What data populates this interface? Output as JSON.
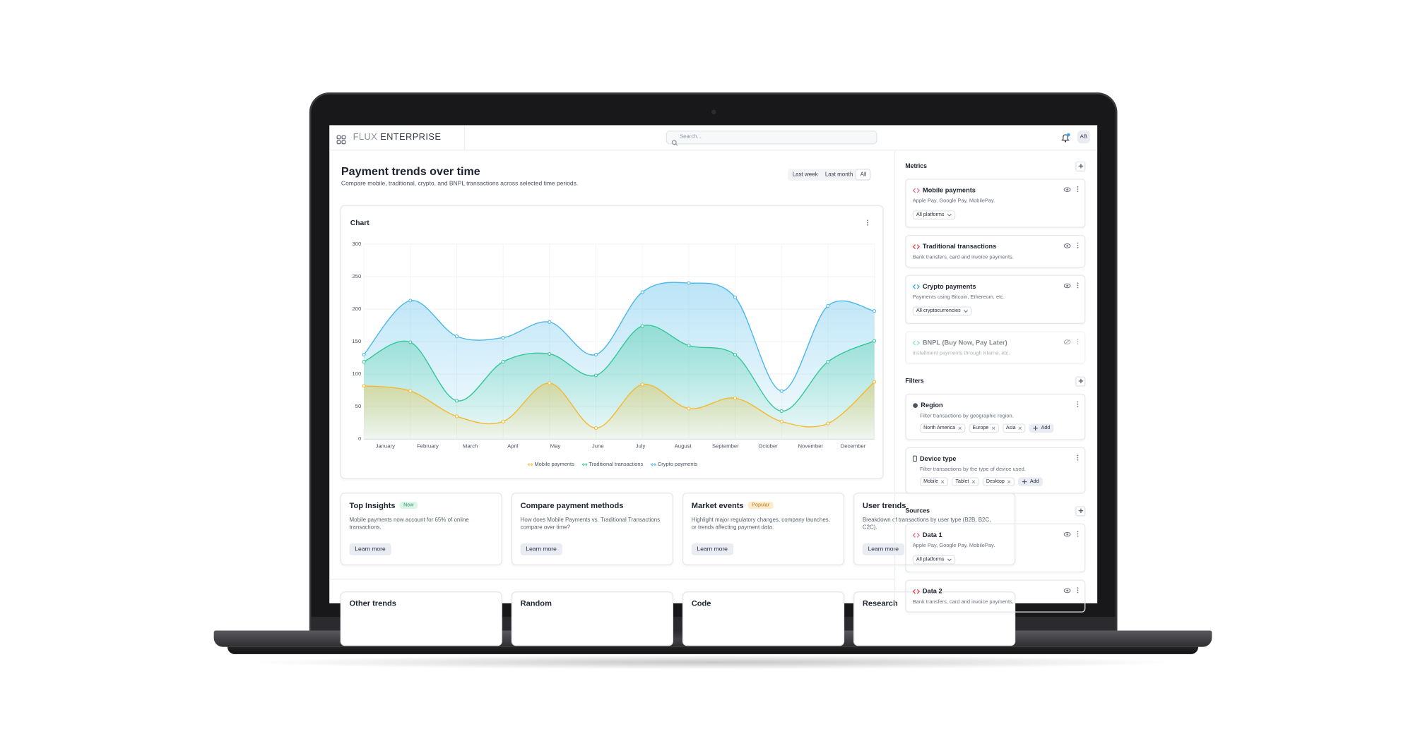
{
  "header": {
    "brand_light": "FLUX",
    "brand_bold": "ENTERPRISE",
    "search_placeholder": "Search...",
    "avatar": "AB"
  },
  "page": {
    "title": "Payment trends over time",
    "subtitle": "Compare mobile, traditional, crypto, and BNPL transactions across selected time periods.",
    "ranges": [
      "Last week",
      "Last month",
      "All"
    ]
  },
  "chart_data": {
    "type": "line",
    "title": "Chart",
    "categories": [
      "January",
      "February",
      "March",
      "April",
      "May",
      "June",
      "July",
      "August",
      "September",
      "October",
      "November",
      "December"
    ],
    "series": [
      {
        "name": "Mobile payments",
        "color": "#f5b82e",
        "values": [
          82,
          74,
          35,
          27,
          86,
          17,
          84,
          47,
          63,
          27,
          24,
          88
        ]
      },
      {
        "name": "Traditional transactions",
        "color": "#34c79a",
        "values": [
          119,
          149,
          59,
          119,
          131,
          98,
          174,
          144,
          130,
          43,
          119,
          151
        ]
      },
      {
        "name": "Crypto payments",
        "color": "#4bb8e8",
        "values": [
          130,
          213,
          158,
          156,
          180,
          130,
          226,
          240,
          218,
          74,
          205,
          197
        ]
      }
    ],
    "ylim": [
      0,
      300
    ],
    "yticks": [
      0,
      50,
      100,
      150,
      200,
      250,
      300
    ],
    "grid": true,
    "area": true
  },
  "cards": [
    {
      "title": "Top Insights",
      "badge": "New",
      "badge_color": "#2f9e6e",
      "badge_bg": "#dcf5e8",
      "text": "Mobile payments now account for 65% of online transactions.",
      "button": "Learn more"
    },
    {
      "title": "Compare payment methods",
      "text": "How does Mobile Payments vs. Traditional Transactions compare over time?",
      "button": "Learn more"
    },
    {
      "title": "Market events",
      "badge": "Popular",
      "badge_color": "#b7791f",
      "badge_bg": "#fdeccc",
      "text": "Highlight major regulatory changes, company launches, or trends affecting payment data.",
      "button": "Learn more"
    },
    {
      "title": "User trends",
      "text": "Breakdown of transactions by user type (B2B, B2C, C2C).",
      "button": "Learn more"
    }
  ],
  "more_cards": [
    "Other trends",
    "Random",
    "Code",
    "Research"
  ],
  "sidebar": {
    "metrics": {
      "title": "Metrics",
      "items": [
        {
          "name": "Mobile payments",
          "description": "Apple Pay, Google Pay, MobilePay.",
          "dropdown": "All platforms",
          "color": "#e86fa0"
        },
        {
          "name": "Traditional transactions",
          "description": "Bank transfers, card and invoice payments.",
          "color": "#e0464f"
        },
        {
          "name": "Crypto payments",
          "description": "Payments using Bitcoin, Ethereum, etc.",
          "dropdown": "All cryptocurrencies",
          "color": "#3ba7e0"
        },
        {
          "name": "BNPL (Buy Now, Pay Later)",
          "description": "Installment payments through Klarna, etc.",
          "color": "#3cc3a0",
          "hidden": true
        }
      ]
    },
    "filters": {
      "title": "Filters",
      "items": [
        {
          "name": "Region",
          "description": "Filter transactions by geographic region.",
          "tags": [
            "North America",
            "Europe",
            "Asia"
          ],
          "add": "Add",
          "icon": "globe"
        },
        {
          "name": "Device type",
          "description": "Filter transactions by the type of device used.",
          "tags": [
            "Mobile",
            "Tablet",
            "Desktop"
          ],
          "add": "Add",
          "icon": "device"
        }
      ]
    },
    "sources": {
      "title": "Sources",
      "items": [
        {
          "name": "Data 1",
          "description": "Apple Pay, Google Pay, MobilePay.",
          "dropdown": "All platforms",
          "color": "#e86fa0"
        },
        {
          "name": "Data 2",
          "description": "Bank transfers, card and invoice payments.",
          "color": "#e0464f"
        }
      ]
    }
  }
}
